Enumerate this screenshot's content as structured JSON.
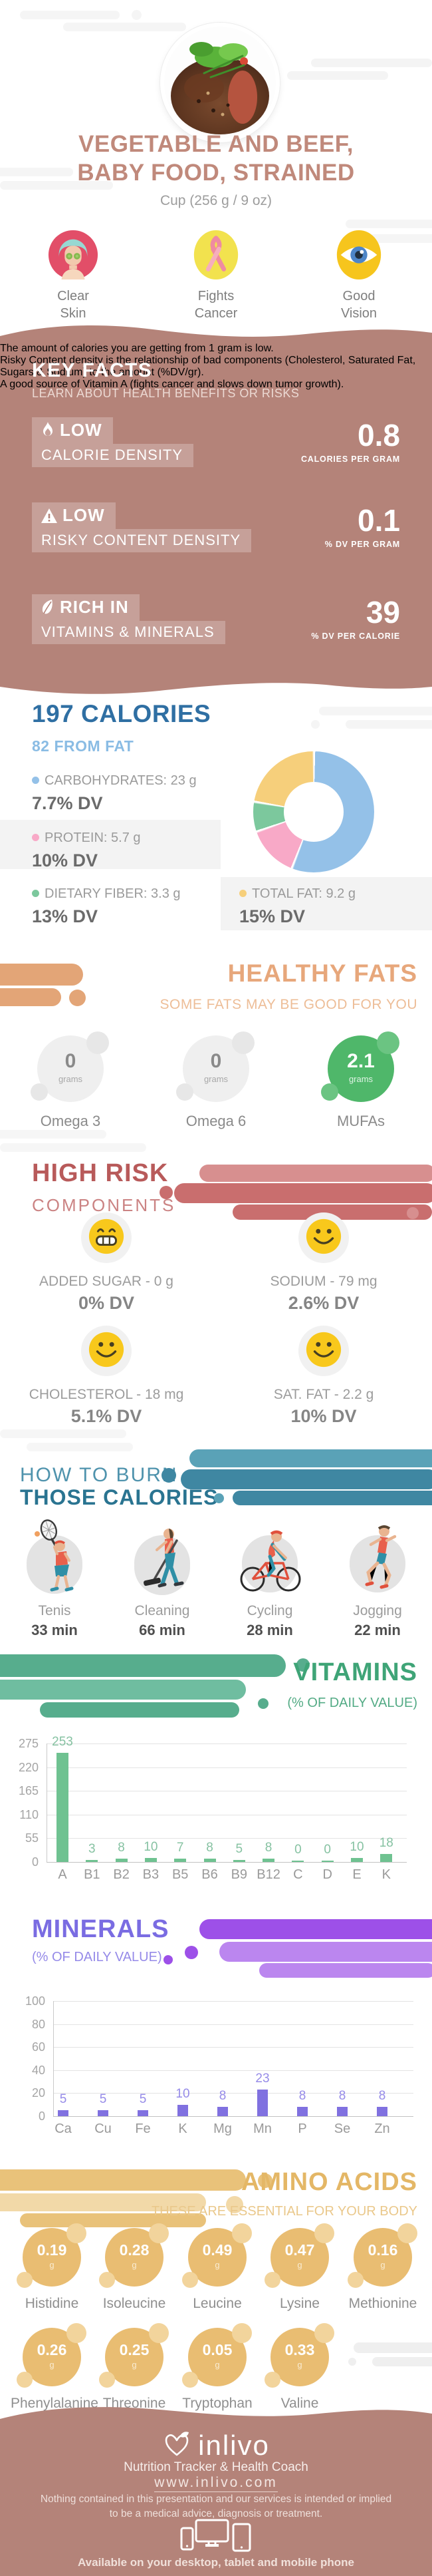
{
  "colors": {
    "mauve": "#b48379",
    "badge_bg": "rgba(255,255,255,0.24)",
    "title_rose": "#c0897b",
    "blue_heading": "#2f6fa3",
    "light_blue": "#8abce4",
    "donut_blue": "#94c1e8",
    "donut_pink": "#f8a9c7",
    "donut_green": "#7cc89d",
    "donut_yellow": "#f6cf7b",
    "orange": "#e7a77b",
    "risk_red": "#b85a5a",
    "teal": "#2a7491",
    "vit_green": "#6fc291",
    "min_purple": "#8071e0",
    "amber": "#e9bd72",
    "smiley_yellow": "#f8c81c"
  },
  "hero": {
    "title_line1": "VEGETABLE AND BEEF,",
    "title_line2": "BABY FOOD, STRAINED",
    "serving": "Cup (256 g / 9 oz)",
    "benefits": [
      {
        "icon": "clear-skin-icon",
        "line1": "Clear",
        "line2": "Skin"
      },
      {
        "icon": "fights-cancer-icon",
        "line1": "Fights",
        "line2": "Cancer"
      },
      {
        "icon": "good-vision-icon",
        "line1": "Good",
        "line2": "Vision"
      }
    ]
  },
  "key_facts": {
    "title": "KEY FACTS",
    "subtitle": "LEARN ABOUT HEALTH BENEFITS OR RISKS",
    "facts": [
      {
        "icon": "flame-icon",
        "badge_line1": "LOW",
        "badge_line2": "CALORIE DENSITY",
        "value": "0.8",
        "unit": "CALORIES PER GRAM",
        "description": "The amount of calories you are getting from 1 gram is low."
      },
      {
        "icon": "warning-icon",
        "badge_line1": "LOW",
        "badge_line2": "RISKY CONTENT DENSITY",
        "value": "0.1",
        "unit": "% DV PER GRAM",
        "description": "Risky Content density is the relationship of bad components (Cholesterol, Saturated Fat, Sugars & Sodium) to the amount (%DV/gr)."
      },
      {
        "icon": "leaf-icon",
        "badge_line1": "RICH IN",
        "badge_line2": "VITAMINS & MINERALS",
        "value": "39",
        "unit": "% DV PER CALORIE",
        "description": "A good source of Vitamin A (fights cancer and slows down tumor growth)."
      }
    ]
  },
  "calories": {
    "title": "197 CALORIES",
    "subtitle": "82 FROM FAT",
    "legend": [
      {
        "label": "CARBOHYDRATES: 23 g",
        "dv": "7.7% DV",
        "color": "#94c1e8"
      },
      {
        "label": "PROTEIN: 5.7 g",
        "dv": "10% DV",
        "color": "#f8a9c7"
      },
      {
        "label": "DIETARY FIBER: 3.3 g",
        "dv": "13% DV",
        "color": "#7cc89d"
      },
      {
        "label": "TOTAL FAT: 9.2 g",
        "dv": "15% DV",
        "color": "#f6cf7b"
      }
    ]
  },
  "chart_data": [
    {
      "type": "pie",
      "title": "Macronutrient breakdown (donut)",
      "slices": [
        {
          "label": "Carbohydrates",
          "grams": 23,
          "percent": 55.8,
          "color": "#94c1e8"
        },
        {
          "label": "Protein",
          "grams": 5.7,
          "percent": 13.8,
          "color": "#f8a9c7"
        },
        {
          "label": "Dietary Fiber",
          "grams": 3.3,
          "percent": 8.0,
          "color": "#7cc89d"
        },
        {
          "label": "Total Fat",
          "grams": 9.2,
          "percent": 22.4,
          "color": "#f6cf7b"
        }
      ]
    },
    {
      "type": "bar",
      "title": "VITAMINS",
      "subtitle": "(% OF DAILY VALUE)",
      "categories": [
        "A",
        "B1",
        "B2",
        "B3",
        "B5",
        "B6",
        "B9",
        "B12",
        "C",
        "D",
        "E",
        "K"
      ],
      "values": [
        253,
        3,
        8,
        10,
        7,
        8,
        5,
        8,
        0,
        0,
        10,
        18
      ],
      "ylim": [
        0,
        275
      ],
      "yticks": [
        0,
        55,
        110,
        165,
        220,
        275
      ],
      "bar_color": "#6fc291",
      "value_color": "#86c2a2",
      "grid": true,
      "legend_position": "none"
    },
    {
      "type": "bar",
      "title": "MINERALS",
      "subtitle": "(% OF DAILY VALUE)",
      "categories": [
        "Ca",
        "Cu",
        "Fe",
        "K",
        "Mg",
        "Mn",
        "P",
        "Se",
        "Zn"
      ],
      "values": [
        5,
        5,
        5,
        10,
        8,
        23,
        8,
        8,
        8
      ],
      "ylim": [
        0,
        100
      ],
      "yticks": [
        0,
        20,
        40,
        60,
        80,
        100
      ],
      "bar_color": "#8071e0",
      "value_color": "#968be8",
      "grid": true,
      "legend_position": "none"
    }
  ],
  "healthy_fats": {
    "title": "HEALTHY FATS",
    "subtitle": "SOME FATS MAY BE GOOD FOR YOU",
    "items": [
      {
        "value": "0",
        "unit": "grams",
        "label": "Omega 3",
        "good": false
      },
      {
        "value": "0",
        "unit": "grams",
        "label": "Omega 6",
        "good": false
      },
      {
        "value": "2.1",
        "unit": "grams",
        "label": "MUFAs",
        "good": true
      }
    ]
  },
  "high_risk": {
    "title": "HIGH RISK",
    "subtitle": "COMPONENTS",
    "cards": [
      {
        "face": "grin",
        "label": "ADDED SUGAR - 0 g",
        "dv": "0% DV"
      },
      {
        "face": "smile",
        "label": "SODIUM - 79 mg",
        "dv": "2.6% DV"
      },
      {
        "face": "smile",
        "label": "CHOLESTEROL - 18 mg",
        "dv": "5.1% DV"
      },
      {
        "face": "smile",
        "label": "SAT. FAT - 2.2 g",
        "dv": "10% DV"
      }
    ]
  },
  "burn": {
    "title_line1": "HOW TO BURN",
    "title_line2": "THOSE CALORIES",
    "activities": [
      {
        "icon": "tennis-icon",
        "label": "Tenis",
        "minutes": "33 min"
      },
      {
        "icon": "cleaning-icon",
        "label": "Cleaning",
        "minutes": "66 min"
      },
      {
        "icon": "cycling-icon",
        "label": "Cycling",
        "minutes": "28 min"
      },
      {
        "icon": "jogging-icon",
        "label": "Jogging",
        "minutes": "22 min"
      }
    ]
  },
  "amino_acids": {
    "title": "AMINO ACIDS",
    "subtitle": "THESE ARE ESSENTIAL FOR YOUR BODY",
    "unit": "g",
    "row1": [
      {
        "value": "0.19",
        "label": "Histidine"
      },
      {
        "value": "0.28",
        "label": "Isoleucine"
      },
      {
        "value": "0.49",
        "label": "Leucine"
      },
      {
        "value": "0.47",
        "label": "Lysine"
      },
      {
        "value": "0.16",
        "label": "Methionine"
      }
    ],
    "row2": [
      {
        "value": "0.26",
        "label": "Phenylalanine"
      },
      {
        "value": "0.25",
        "label": "Threonine"
      },
      {
        "value": "0.05",
        "label": "Tryptophan"
      },
      {
        "value": "0.33",
        "label": "Valine"
      }
    ]
  },
  "footer": {
    "brand": "inlivo",
    "tagline": "Nutrition Tracker & Health Coach",
    "url": "www.inlivo.com",
    "disclaimer_line1": "Nothing contained in this presentation and our services is intended or implied",
    "disclaimer_line2": "to be a medical advice, diagnosis or treatment.",
    "availability": "Available on your desktop, tablet and mobile phone"
  }
}
